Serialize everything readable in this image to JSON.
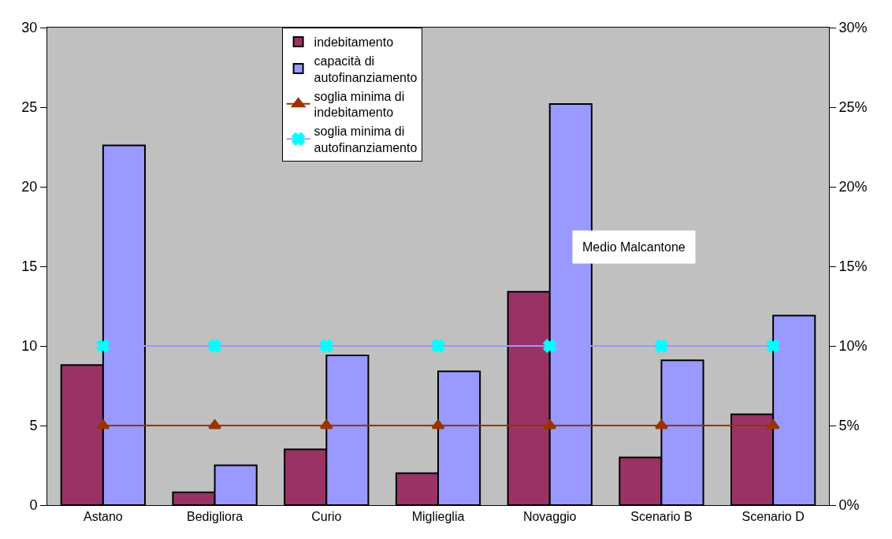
{
  "chart_data": {
    "type": "bar",
    "categories": [
      "Astano",
      "Bedigliora",
      "Curio",
      "Miglieglia",
      "Novaggio",
      "Scenario B",
      "Scenario D"
    ],
    "series": [
      {
        "name": "indebitamento",
        "color": "#993366",
        "values": [
          8.8,
          0.8,
          3.5,
          2.0,
          13.4,
          3.0,
          5.7
        ]
      },
      {
        "name": "capacità di autofinanziamento",
        "color": "#9999ff",
        "values": [
          22.6,
          2.5,
          9.4,
          8.4,
          25.2,
          9.1,
          11.9
        ]
      },
      {
        "name": "soglia minima di indebitamento",
        "type": "line",
        "axis": "y2",
        "color": "#993300",
        "marker": "triangle",
        "values": [
          5,
          5,
          5,
          5,
          5,
          5,
          5
        ]
      },
      {
        "name": "soglia minima di autofinanziamento",
        "type": "line",
        "axis": "y2",
        "color": "#9999ff",
        "marker": "cross",
        "values": [
          10,
          10,
          10,
          10,
          10,
          10,
          10
        ]
      }
    ],
    "ylim": [
      0,
      30
    ],
    "yticks": [
      0,
      5,
      10,
      15,
      20,
      25,
      30
    ],
    "y2lim": [
      0,
      30
    ],
    "y2ticks": [
      {
        "value": 0,
        "label": "0%"
      },
      {
        "value": 5,
        "label": "5%"
      },
      {
        "value": 10,
        "label": "10%"
      },
      {
        "value": 15,
        "label": "15%"
      },
      {
        "value": 20,
        "label": "20%"
      },
      {
        "value": 25,
        "label": "25%"
      },
      {
        "value": 30,
        "label": "30%"
      }
    ],
    "annotations": [
      "Medio Malcantone"
    ],
    "legend": "top",
    "grid": false
  }
}
